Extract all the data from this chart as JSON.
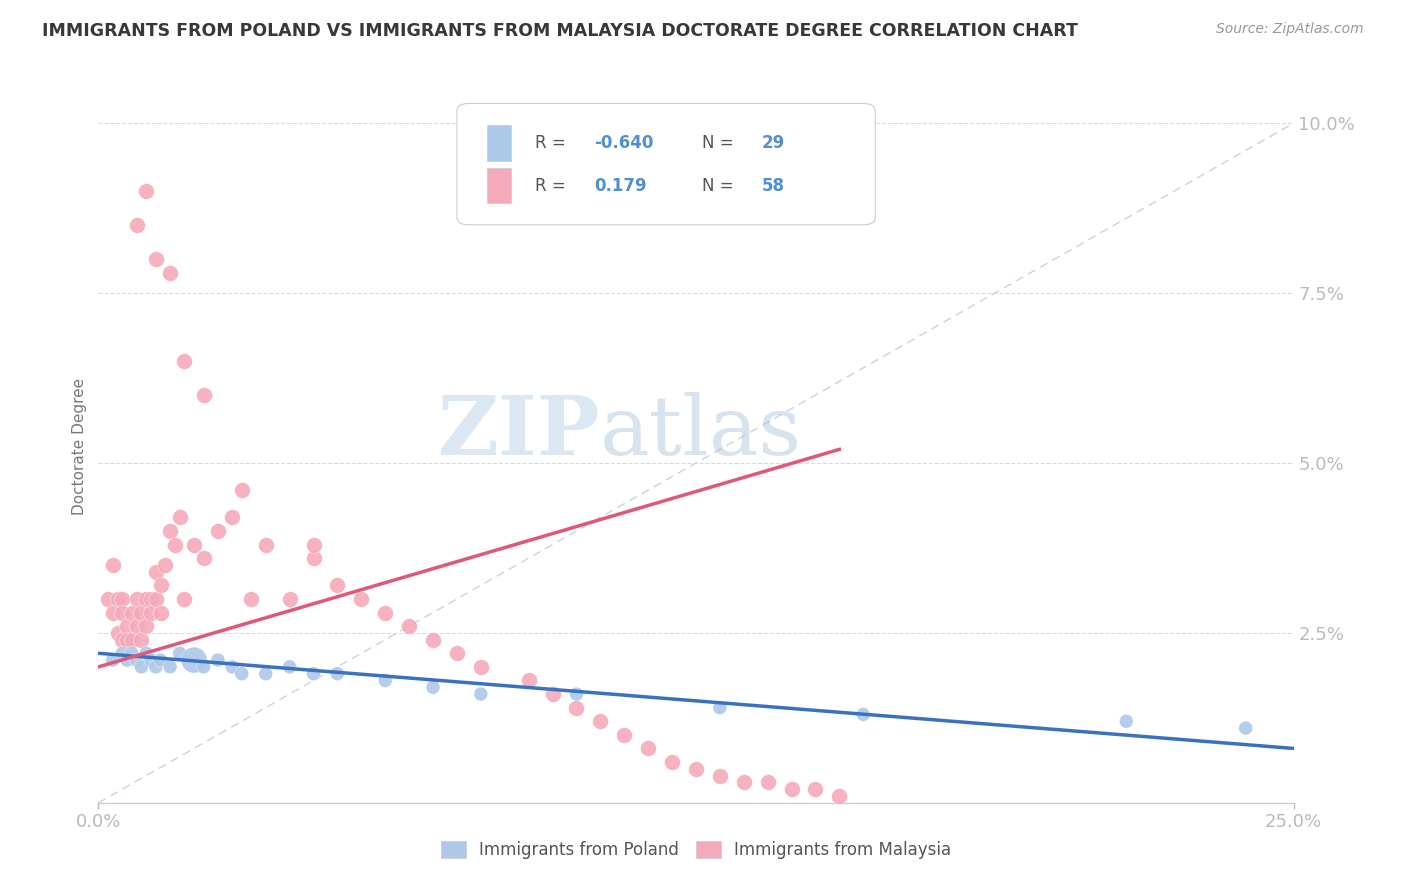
{
  "title": "IMMIGRANTS FROM POLAND VS IMMIGRANTS FROM MALAYSIA DOCTORATE DEGREE CORRELATION CHART",
  "source": "Source: ZipAtlas.com",
  "ylabel": "Doctorate Degree",
  "xlim": [
    0,
    0.25
  ],
  "ylim": [
    0,
    0.105
  ],
  "legend_r_poland": "-0.640",
  "legend_n_poland": "29",
  "legend_r_malaysia": "0.179",
  "legend_n_malaysia": "58",
  "poland_color": "#adc8e8",
  "malaysia_color": "#f5aabb",
  "poland_line_color": "#3a72c0",
  "malaysia_line_color": "#e05878",
  "ref_line_color": "#c0d5e8",
  "grid_color": "#d0dde8",
  "background_color": "#ffffff",
  "title_color": "#383838",
  "axis_color": "#5090d0",
  "watermark_color": "#dce8f5",
  "poland_x": [
    0.003,
    0.005,
    0.006,
    0.007,
    0.008,
    0.009,
    0.01,
    0.011,
    0.012,
    0.013,
    0.015,
    0.017,
    0.02,
    0.022,
    0.025,
    0.028,
    0.03,
    0.035,
    0.04,
    0.045,
    0.05,
    0.06,
    0.07,
    0.08,
    0.1,
    0.13,
    0.16,
    0.215,
    0.24
  ],
  "poland_y": [
    0.021,
    0.022,
    0.021,
    0.022,
    0.021,
    0.02,
    0.022,
    0.021,
    0.02,
    0.021,
    0.02,
    0.022,
    0.021,
    0.02,
    0.021,
    0.02,
    0.019,
    0.019,
    0.02,
    0.019,
    0.019,
    0.018,
    0.017,
    0.016,
    0.016,
    0.014,
    0.013,
    0.012,
    0.011
  ],
  "poland_sizes": [
    100,
    100,
    100,
    100,
    100,
    100,
    100,
    100,
    100,
    100,
    100,
    100,
    350,
    100,
    100,
    100,
    100,
    100,
    100,
    100,
    100,
    100,
    100,
    100,
    100,
    100,
    100,
    100,
    100
  ],
  "malaysia_x": [
    0.002,
    0.003,
    0.003,
    0.004,
    0.004,
    0.005,
    0.005,
    0.005,
    0.006,
    0.006,
    0.007,
    0.007,
    0.008,
    0.008,
    0.009,
    0.009,
    0.01,
    0.01,
    0.011,
    0.011,
    0.012,
    0.012,
    0.013,
    0.013,
    0.014,
    0.015,
    0.016,
    0.017,
    0.018,
    0.02,
    0.022,
    0.025,
    0.028,
    0.032,
    0.035,
    0.04,
    0.045,
    0.05,
    0.055,
    0.06,
    0.065,
    0.07,
    0.075,
    0.08,
    0.09,
    0.095,
    0.1,
    0.105,
    0.11,
    0.115,
    0.12,
    0.125,
    0.13,
    0.135,
    0.14,
    0.145,
    0.15,
    0.155
  ],
  "malaysia_y": [
    0.03,
    0.035,
    0.028,
    0.03,
    0.025,
    0.03,
    0.028,
    0.024,
    0.026,
    0.024,
    0.028,
    0.024,
    0.03,
    0.026,
    0.028,
    0.024,
    0.03,
    0.026,
    0.03,
    0.028,
    0.034,
    0.03,
    0.032,
    0.028,
    0.035,
    0.04,
    0.038,
    0.042,
    0.03,
    0.038,
    0.036,
    0.04,
    0.042,
    0.03,
    0.038,
    0.03,
    0.036,
    0.032,
    0.03,
    0.028,
    0.026,
    0.024,
    0.022,
    0.02,
    0.018,
    0.016,
    0.014,
    0.012,
    0.01,
    0.008,
    0.006,
    0.005,
    0.004,
    0.003,
    0.003,
    0.002,
    0.002,
    0.001
  ],
  "malaysia_high_x": [
    0.008,
    0.01,
    0.012,
    0.015,
    0.018,
    0.022,
    0.03,
    0.045
  ],
  "malaysia_high_y": [
    0.085,
    0.09,
    0.08,
    0.078,
    0.065,
    0.06,
    0.046,
    0.038
  ],
  "poland_trend_x": [
    0.0,
    0.25
  ],
  "poland_trend_y_start": 0.022,
  "poland_trend_y_end": 0.008,
  "malaysia_trend_x_start": 0.0,
  "malaysia_trend_x_end": 0.155,
  "malaysia_trend_y_start": 0.02,
  "malaysia_trend_y_end": 0.052
}
